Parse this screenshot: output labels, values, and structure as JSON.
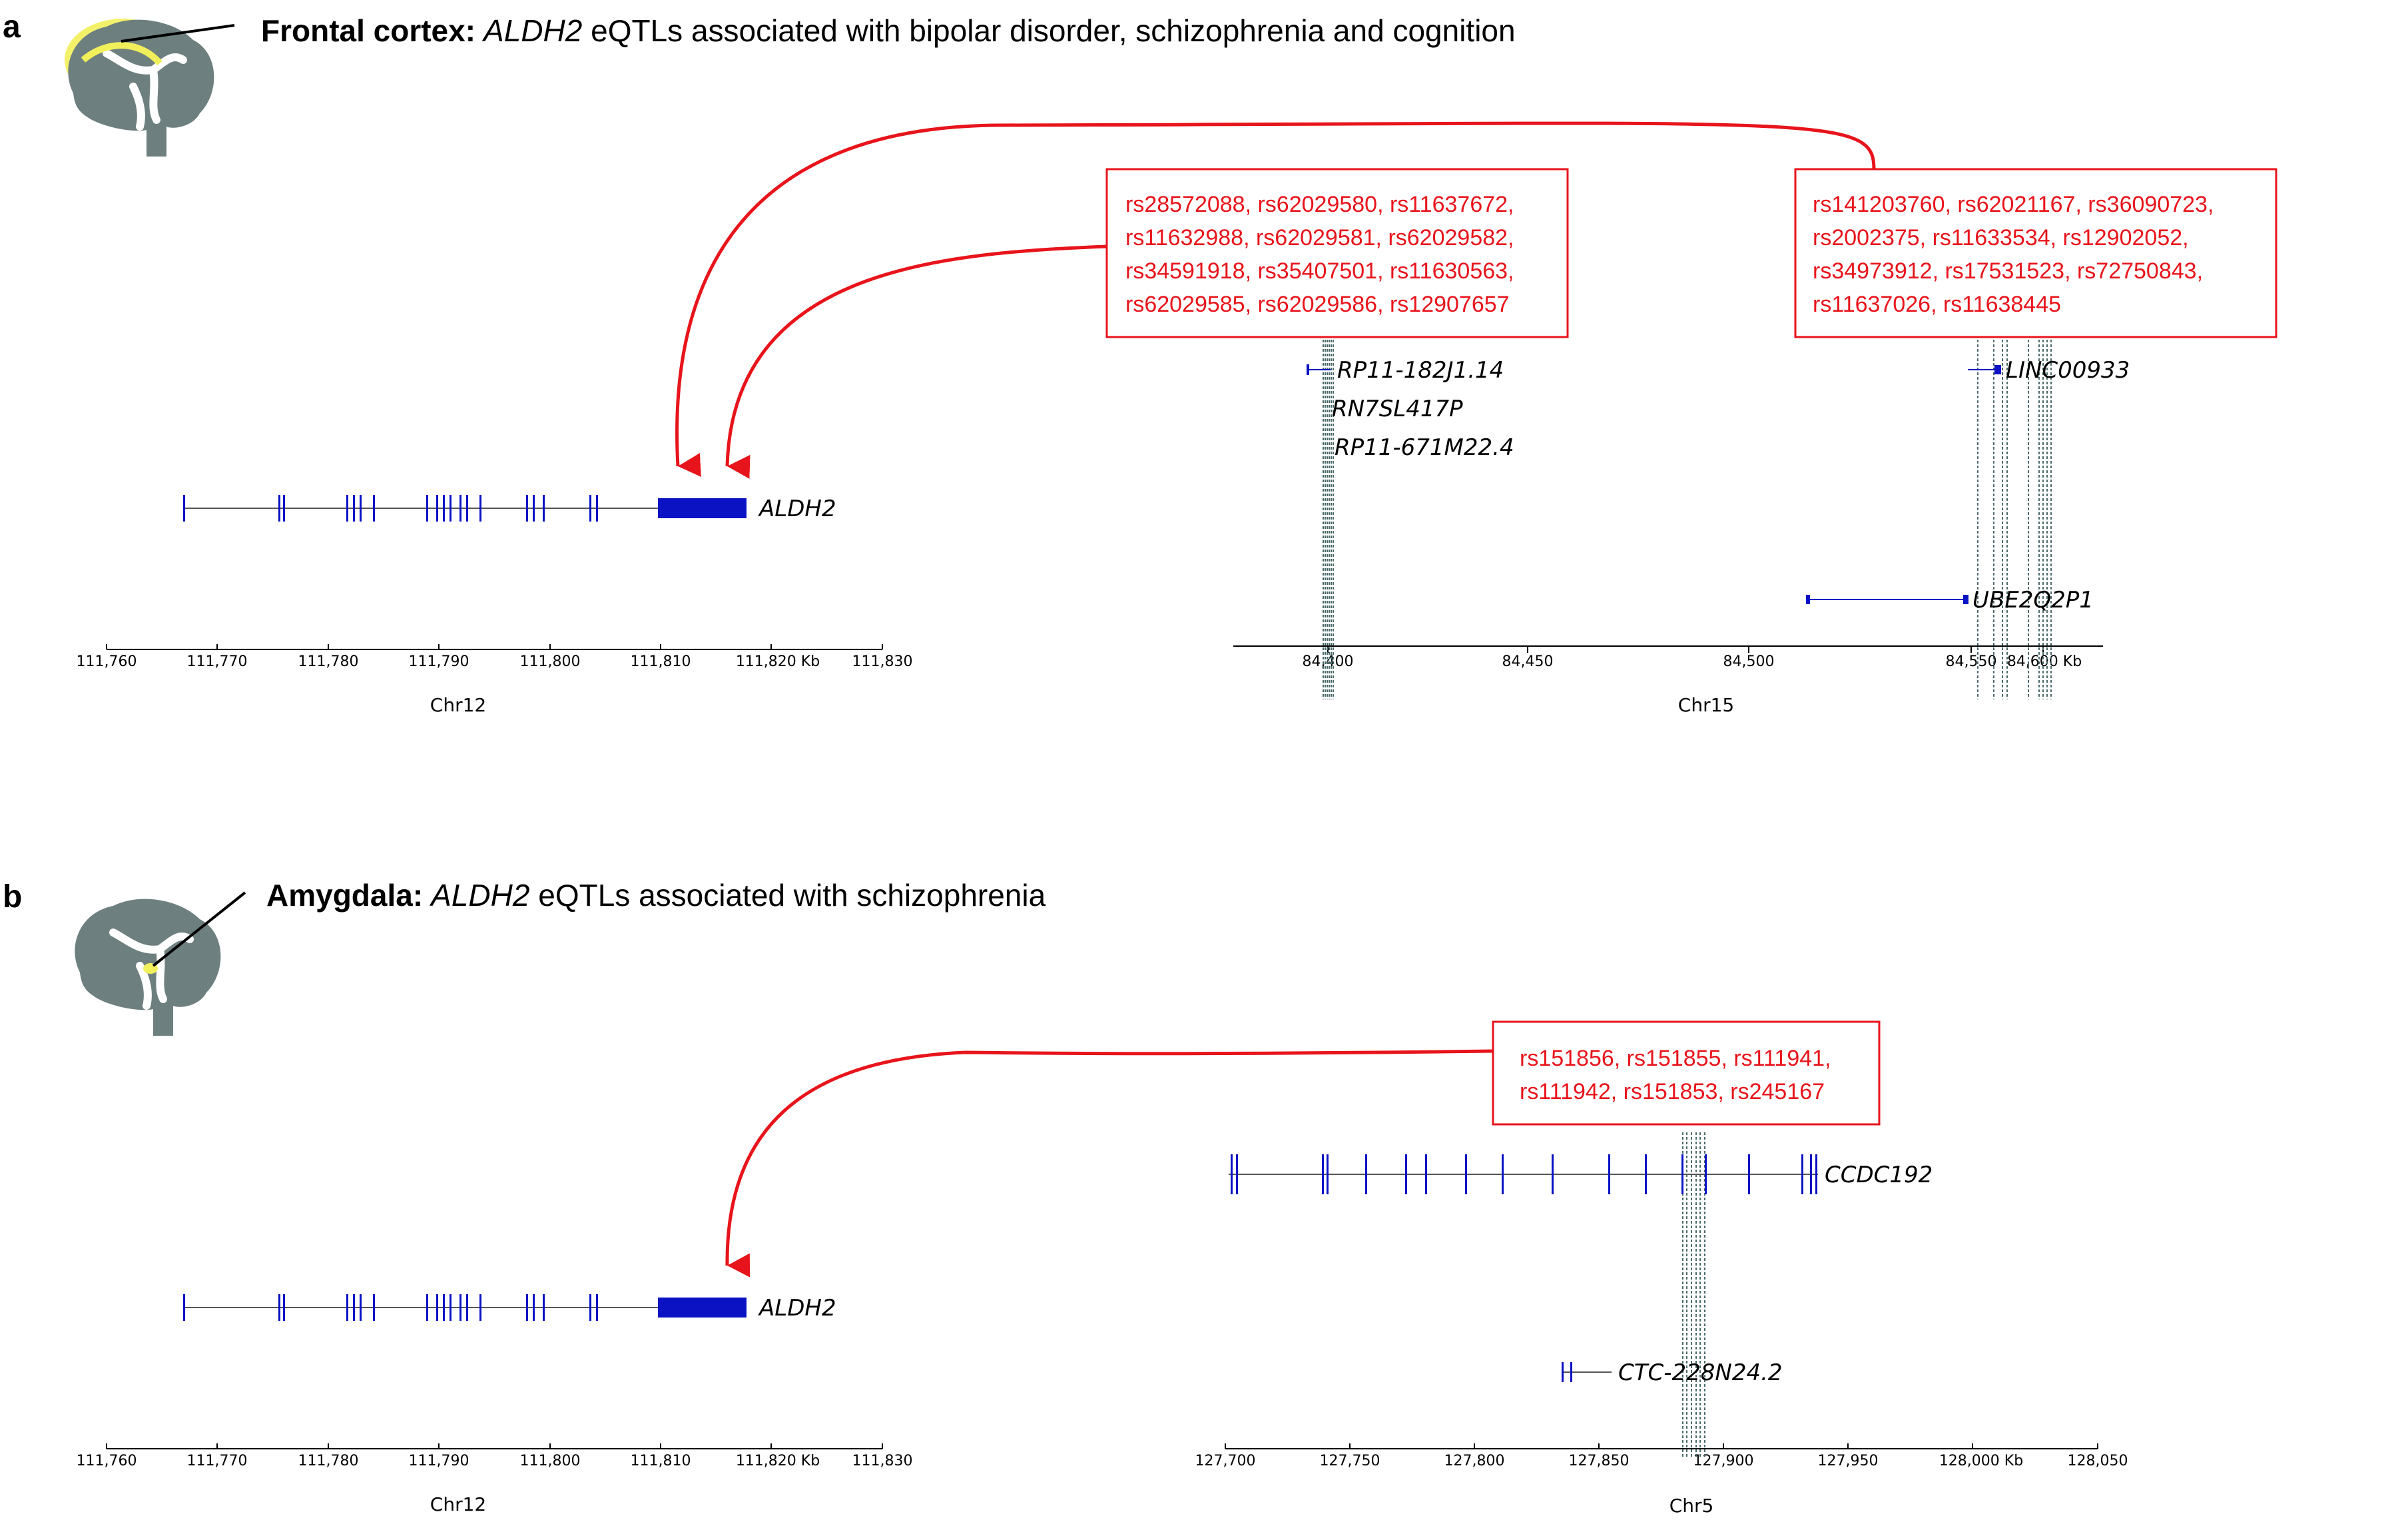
{
  "panel_a": {
    "letter": "a",
    "title_region": "Frontal cortex:",
    "title_gene": "ALDH2",
    "title_rest": " eQTLs associated with bipolar disorder, schizophrenia and cognition",
    "brain_icon": "brain-icon",
    "region_highlight_color": "#f2f05a",
    "chr12": {
      "label": "Chr12",
      "ticks": [
        "111,760",
        "111,770",
        "111,780",
        "111,790",
        "111,800",
        "111,810",
        "111,820 Kb",
        "111,830"
      ],
      "gene": "ALDH2"
    },
    "chr15": {
      "label": "Chr15",
      "ticks": [
        "84,400",
        "84,450",
        "84,500",
        "84,550",
        "84,600 Kb"
      ],
      "genes": [
        "RP11-182J1.14",
        "RN7SL417P",
        "RP11-671M22.4",
        "LINC00933",
        "UBE2Q2P1"
      ]
    },
    "snp_box_left": [
      "rs28572088, rs62029580, rs11637672,",
      "rs11632988, rs62029581, rs62029582,",
      "rs34591918, rs35407501, rs11630563,",
      "rs62029585, rs62029586, rs12907657"
    ],
    "snp_box_right": [
      "rs141203760, rs62021167, rs36090723,",
      "rs2002375, rs11633534, rs12902052,",
      "rs34973912, rs17531523, rs72750843,",
      "rs11637026, rs11638445"
    ]
  },
  "panel_b": {
    "letter": "b",
    "title_region": "Amygdala:",
    "title_gene": "ALDH2",
    "title_rest": " eQTLs associated with schizophrenia",
    "brain_icon": "brain-icon",
    "region_highlight_color": "#f2f05a",
    "chr12": {
      "label": "Chr12",
      "ticks": [
        "111,760",
        "111,770",
        "111,780",
        "111,790",
        "111,800",
        "111,810",
        "111,820 Kb",
        "111,830"
      ],
      "gene": "ALDH2"
    },
    "chr5": {
      "label": "Chr5",
      "ticks": [
        "127,700",
        "127,750",
        "127,800",
        "127,850",
        "127,900",
        "127,950",
        "128,000 Kb",
        "128,050"
      ],
      "genes": [
        "CCDC192",
        "CTC-228N24.2"
      ]
    },
    "snp_box": [
      "rs151856, rs151855, rs111941,",
      "rs111942, rs151853, rs245167"
    ]
  },
  "colors": {
    "exon": "#0a12c4",
    "arrow": "#e8141b",
    "snp_text": "#e8141b",
    "brain": "#6e7f7f",
    "eqtl_line": "#4a6a6a"
  }
}
